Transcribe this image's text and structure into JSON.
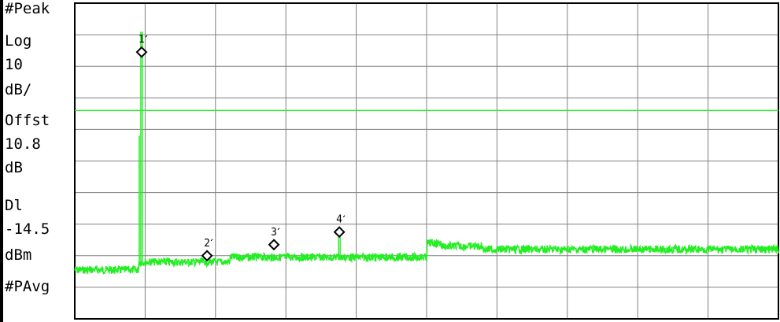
{
  "display": {
    "detector": "#Peak",
    "scale_type": "Log",
    "scale_value": "10",
    "scale_unit": "dB/",
    "offset_label": "Offst",
    "offset_value": "10.8",
    "offset_unit": "dB",
    "display_line_label": "Dl",
    "display_line_value": "-14.5",
    "display_line_unit": "dBm",
    "averaging": "#PAvg"
  },
  "colors": {
    "trace": "#22ee22",
    "display_line": "#22ee22",
    "grid": "#808080",
    "marker": "#000000",
    "background": "#ffffff"
  },
  "chart_data": {
    "type": "line",
    "grid": {
      "divisions_x": 10,
      "divisions_y": 10
    },
    "y_axis": {
      "scale": "log",
      "db_per_div": 10
    },
    "display_line": {
      "level": "-14.5 dBm"
    },
    "markers": [
      {
        "label": "1",
        "trace_fraction_x": 0.095,
        "level_div_from_top": 1.55
      },
      {
        "label": "2",
        "trace_fraction_x": 0.188,
        "level_div_from_top": 8.0
      },
      {
        "label": "3",
        "trace_fraction_x": 0.283,
        "level_div_from_top": 7.65
      },
      {
        "label": "4",
        "trace_fraction_x": 0.376,
        "level_div_from_top": 7.25
      }
    ],
    "trace_segments": [
      {
        "from_fraction_x": 0.0,
        "to_fraction_x": 0.09,
        "level_div_from_top": 8.45
      },
      {
        "from_fraction_x": 0.09,
        "to_fraction_x": 0.22,
        "level_div_from_top": 8.2
      },
      {
        "from_fraction_x": 0.22,
        "to_fraction_x": 0.5,
        "level_div_from_top": 8.05
      },
      {
        "from_fraction_x": 0.5,
        "to_fraction_x": 0.52,
        "level_div_from_top": 7.6
      },
      {
        "from_fraction_x": 0.52,
        "to_fraction_x": 0.58,
        "level_div_from_top": 7.7
      },
      {
        "from_fraction_x": 0.58,
        "to_fraction_x": 1.0,
        "level_div_from_top": 7.8
      }
    ],
    "spurs": [
      {
        "fraction_x": 0.095,
        "top_div": 0.9
      },
      {
        "fraction_x": 0.376,
        "top_div": 7.3
      }
    ]
  }
}
